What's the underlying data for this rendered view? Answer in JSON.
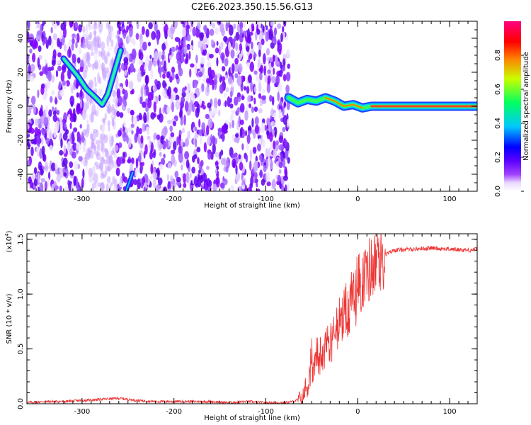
{
  "title": "C2E6.2023.350.15.56.G13",
  "chart_data": [
    {
      "type": "heatmap",
      "xlabel": "Height of straight line (km)",
      "ylabel": "Frequency (Hz)",
      "xlim": [
        -360,
        130
      ],
      "ylim": [
        -50,
        50
      ],
      "xticks": [
        -300,
        -200,
        -100,
        0,
        100
      ],
      "yticks": [
        -40,
        -20,
        0,
        20,
        40
      ],
      "colorbar": {
        "label": "Normalized spectral amplitude",
        "range": [
          0.0,
          1.0
        ],
        "ticks": [
          "0.0",
          "0.2",
          "0.4",
          "0.6",
          "0.8"
        ],
        "colormap": [
          "#ffffff",
          "#e9d8ff",
          "#a040ff",
          "#5a00ff",
          "#0000ff",
          "#00c8ff",
          "#00ff60",
          "#c8ff00",
          "#ff8000",
          "#ff0000",
          "#ff0080"
        ]
      },
      "noise_region_x": [
        -360,
        -75
      ],
      "frequency_track": [
        {
          "x": -320,
          "y": 28
        },
        {
          "x": -305,
          "y": 18
        },
        {
          "x": -295,
          "y": 10
        },
        {
          "x": -285,
          "y": 5
        },
        {
          "x": -278,
          "y": 1
        },
        {
          "x": -272,
          "y": 7
        },
        {
          "x": -265,
          "y": 20
        },
        {
          "x": -258,
          "y": 33
        },
        {
          "x": -75,
          "y": 5
        },
        {
          "x": -65,
          "y": 2
        },
        {
          "x": -55,
          "y": 4
        },
        {
          "x": -45,
          "y": 3
        },
        {
          "x": -35,
          "y": 5
        },
        {
          "x": -25,
          "y": 3
        },
        {
          "x": -15,
          "y": 0
        },
        {
          "x": -5,
          "y": 1
        },
        {
          "x": 5,
          "y": -1
        },
        {
          "x": 15,
          "y": 0
        },
        {
          "x": 130,
          "y": 0
        }
      ],
      "low_track": [
        {
          "x": -252,
          "y": -50
        },
        {
          "x": -245,
          "y": -39
        }
      ]
    },
    {
      "type": "line",
      "xlabel": "Height of straight line (km)",
      "ylabel": "SNR (10 * v/v)",
      "yscale_label": "(x10",
      "yscale_exp": "4",
      "yscale_close": ")",
      "xlim": [
        -360,
        130
      ],
      "ylim": [
        0.0,
        1.55
      ],
      "xticks": [
        -300,
        -200,
        -100,
        0,
        100
      ],
      "yticks": [
        "0.0",
        "0.5",
        "1.0",
        "1.5"
      ],
      "color": "#ee3333",
      "series": [
        {
          "x": [
            -360,
            -340,
            -320,
            -300,
            -280,
            -260,
            -240,
            -220,
            -200,
            -180,
            -160,
            -140,
            -120,
            -100,
            -80,
            -70,
            -60,
            -55,
            -50,
            -45,
            -40,
            -35,
            -30,
            -25,
            -20,
            -15,
            -10,
            -5,
            0,
            5,
            10,
            15,
            20,
            25,
            30,
            40,
            60,
            80,
            100,
            120,
            130
          ],
          "values": [
            0.01,
            0.02,
            0.02,
            0.03,
            0.04,
            0.05,
            0.03,
            0.02,
            0.02,
            0.02,
            0.02,
            0.01,
            0.02,
            0.01,
            0.01,
            0.02,
            0.06,
            0.15,
            0.28,
            0.38,
            0.45,
            0.52,
            0.55,
            0.62,
            0.7,
            0.78,
            0.88,
            0.95,
            1.05,
            1.15,
            1.2,
            1.25,
            1.28,
            1.32,
            1.36,
            1.4,
            1.41,
            1.42,
            1.41,
            1.4,
            1.41
          ]
        }
      ]
    }
  ]
}
